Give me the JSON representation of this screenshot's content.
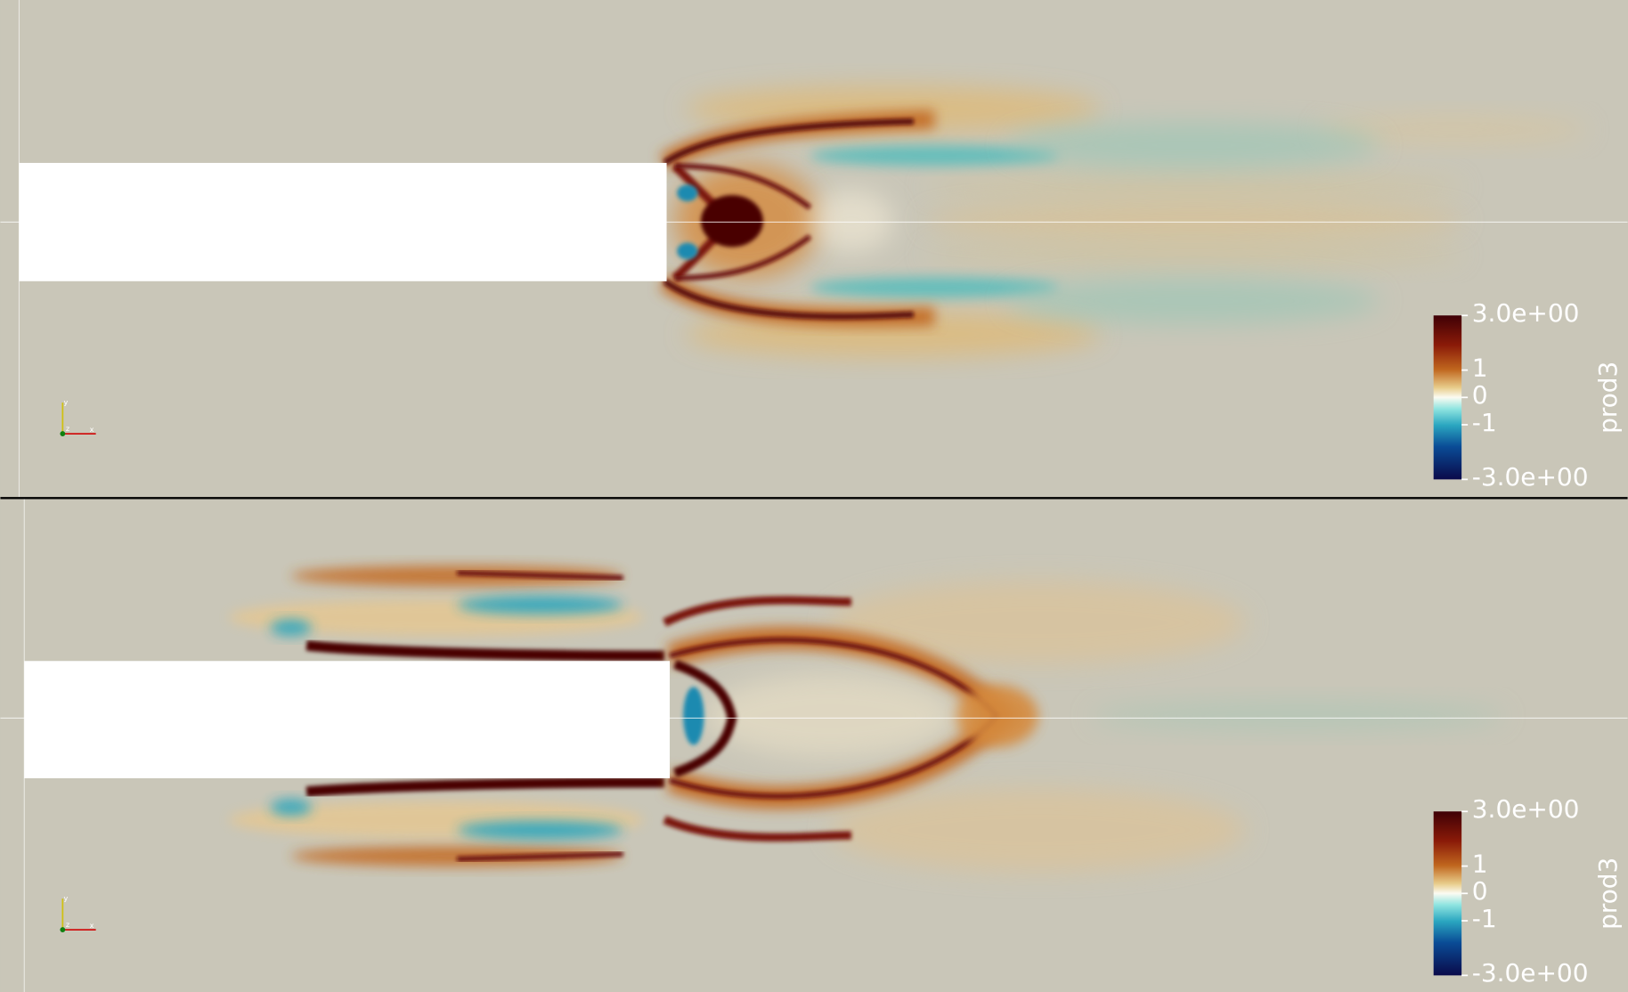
{
  "views": [
    {
      "colorbar": {
        "title": "prod3",
        "range": [
          -3,
          3
        ],
        "ticks": [
          {
            "value": 3,
            "label": "3.0e+00"
          },
          1,
          0,
          -1,
          {
            "value": -3,
            "label": "-3.0e+00"
          }
        ]
      },
      "orientation_axes": {
        "x": "x",
        "y": "y",
        "z": "z"
      }
    },
    {
      "colorbar": {
        "title": "prod3",
        "range": [
          -3,
          3
        ],
        "ticks": [
          {
            "value": 3,
            "label": "3.0e+00"
          },
          1,
          0,
          -1,
          {
            "value": -3,
            "label": "-3.0e+00"
          }
        ]
      },
      "orientation_axes": {
        "x": "x",
        "y": "y",
        "z": "z"
      }
    }
  ]
}
